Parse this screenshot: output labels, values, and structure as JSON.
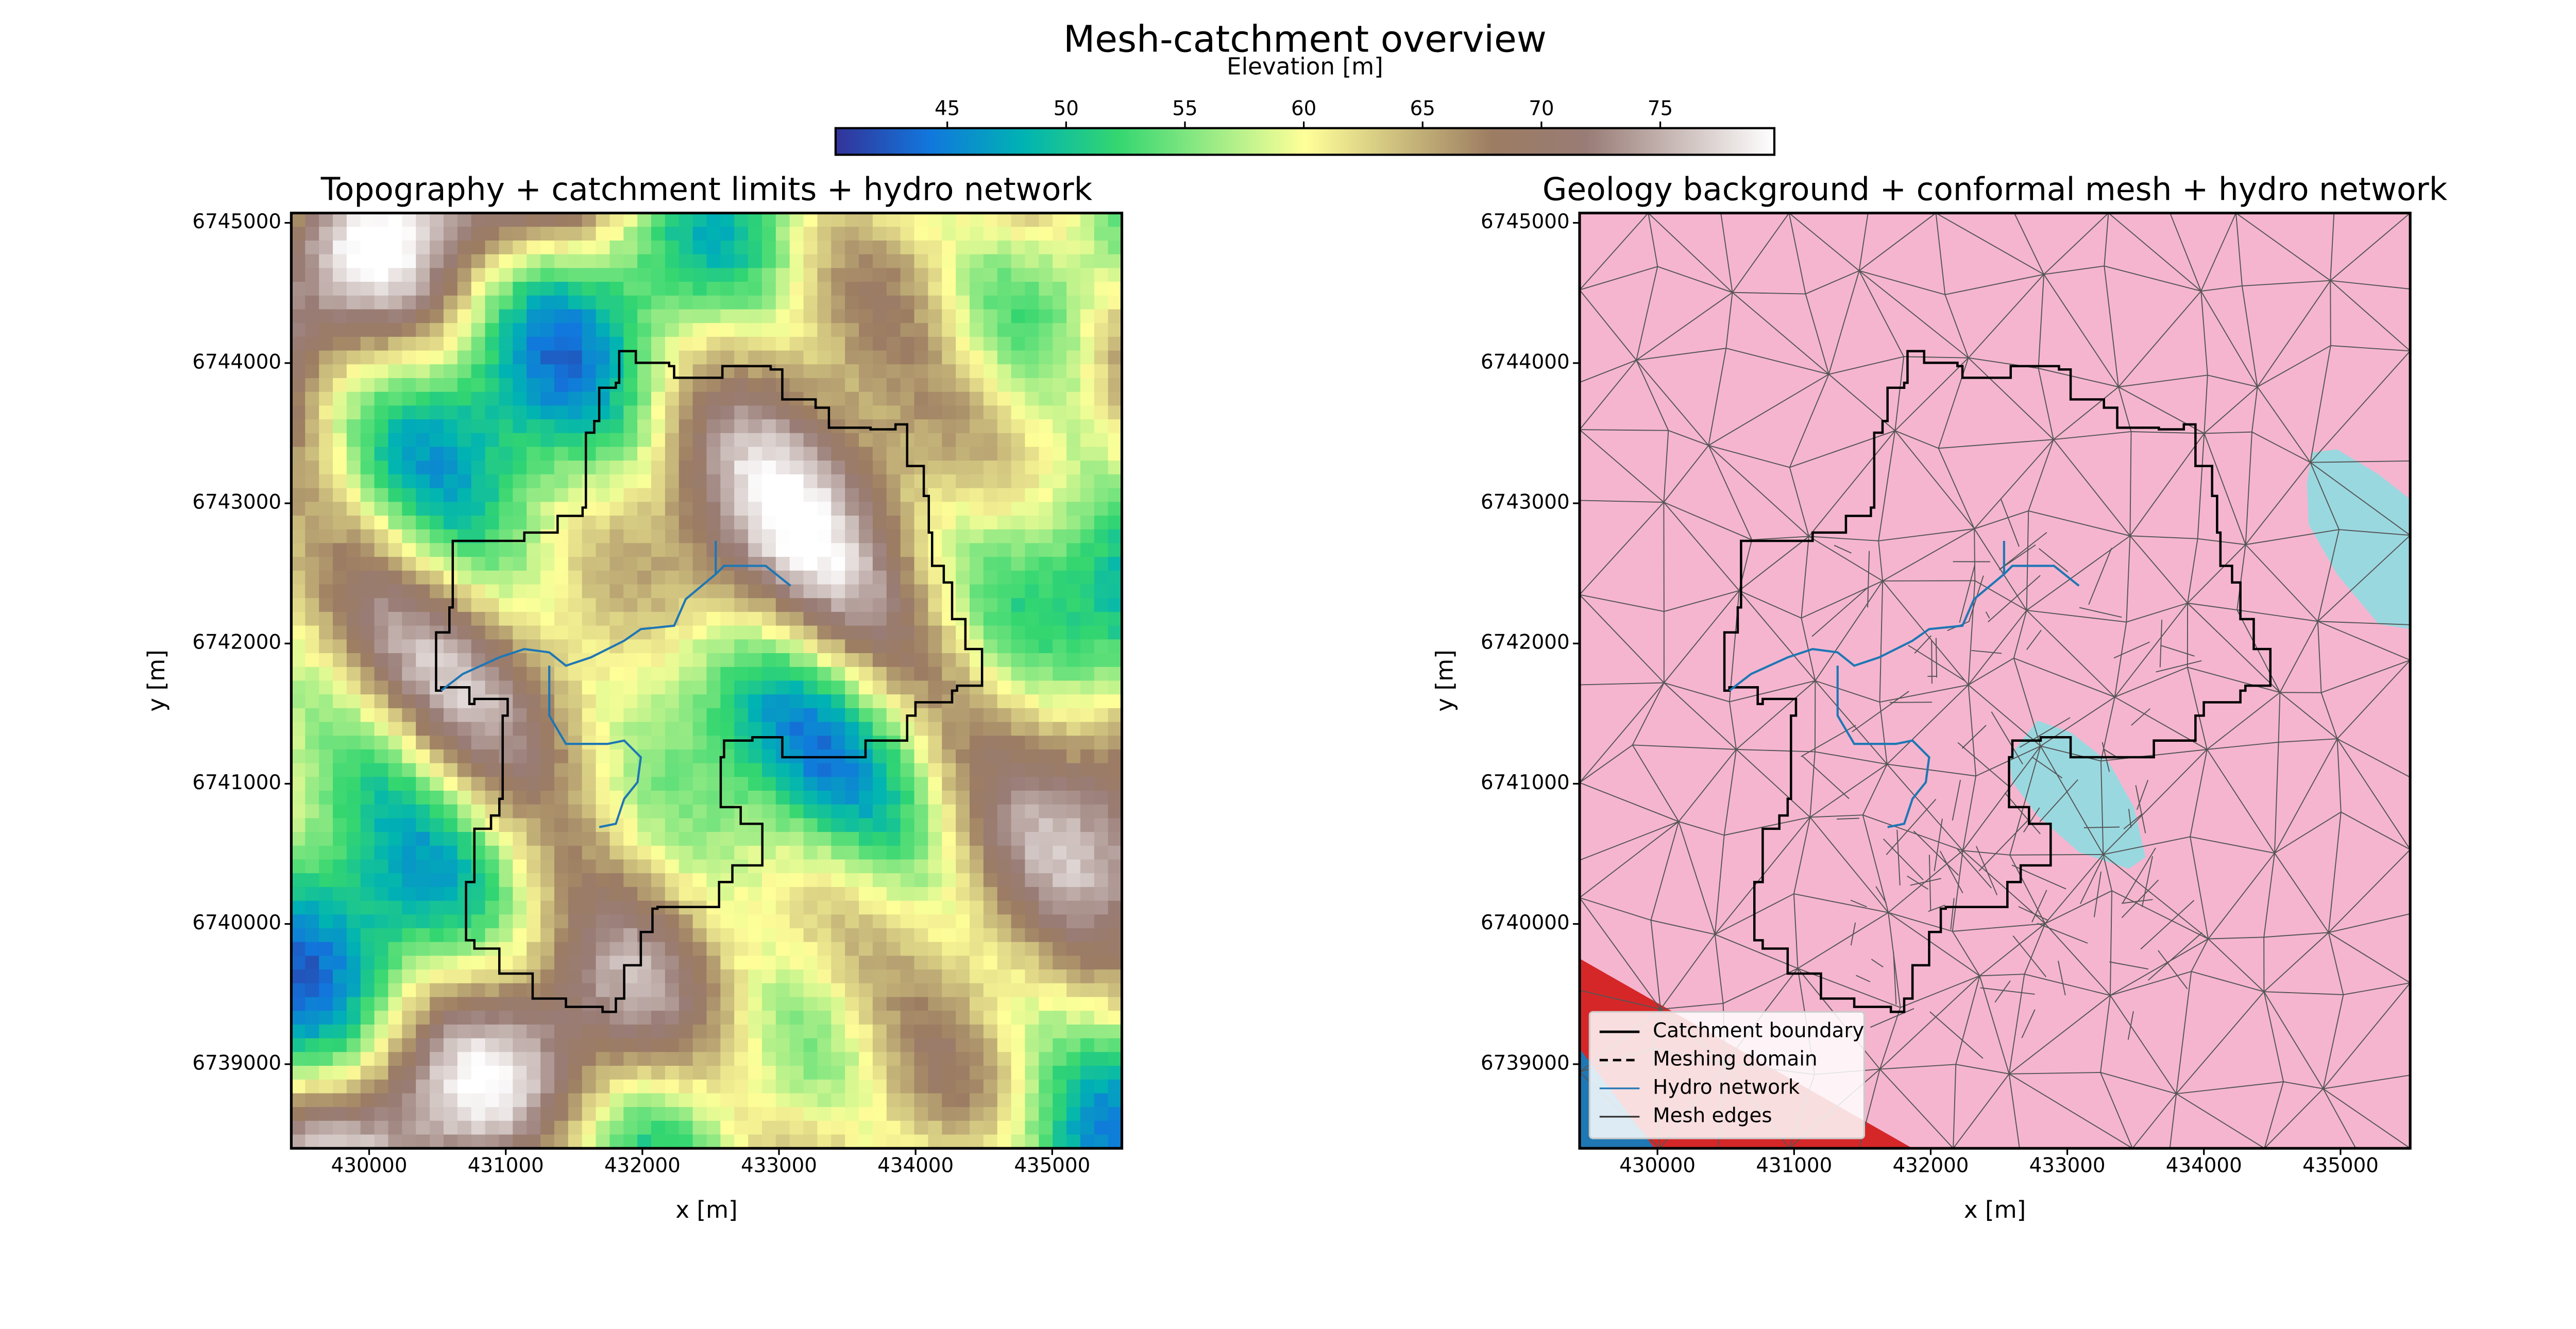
{
  "title": "Mesh-catchment overview",
  "chart_data": [
    {
      "type": "image",
      "title": "Topography + catchment limits + hydro network",
      "xlabel": "x [m]",
      "ylabel": "y [m]",
      "xlim": [
        429430,
        435510
      ],
      "ylim": [
        6738400,
        6745070
      ],
      "xticks": [
        430000,
        431000,
        432000,
        433000,
        434000,
        435000
      ],
      "yticks": [
        6739000,
        6740000,
        6741000,
        6742000,
        6743000,
        6744000,
        6745000
      ],
      "colorbar": {
        "label": "Elevation [m]",
        "lim": [
          40.3,
          79.8
        ],
        "ticks": [
          45,
          50,
          55,
          60,
          65,
          70,
          75
        ],
        "colormap": [
          "#333399",
          "#1177dd",
          "#00b3b3",
          "#33d670",
          "#99eb85",
          "#ffff99",
          "#ccbe7d",
          "#9c7c62",
          "#997c76",
          "#ccbebb",
          "#ffffff"
        ]
      }
    },
    {
      "type": "mesh",
      "title": "Geology background + conformal mesh + hydro network",
      "xlabel": "x [m]",
      "ylabel": "y [m]",
      "xlim": [
        429430,
        435510
      ],
      "ylim": [
        6738400,
        6745070
      ],
      "xticks": [
        430000,
        431000,
        432000,
        433000,
        434000,
        435000
      ],
      "yticks": [
        6739000,
        6740000,
        6741000,
        6742000,
        6743000,
        6744000,
        6745000
      ],
      "legend_loc": "lower left",
      "legend": [
        {
          "label": "Catchment boundary",
          "color": "#000000",
          "dash": false
        },
        {
          "label": "Meshing domain",
          "color": "#000000",
          "dash": true
        },
        {
          "label": "Hydro network",
          "color": "#1f77b4",
          "dash": false
        },
        {
          "label": "Mesh edges",
          "color": "#333333",
          "dash": false
        }
      ]
    }
  ]
}
